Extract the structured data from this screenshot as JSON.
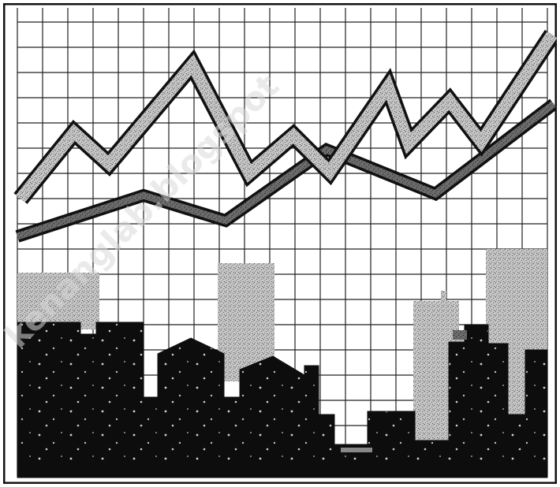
{
  "illustration": {
    "style": "black-and-white clip-art",
    "subject": "rising line chart above a city skyline",
    "colors": {
      "background": "#ffffff",
      "ink": "#111111",
      "grid": "#222222",
      "stipple": "#b8b8b8"
    }
  },
  "watermark": {
    "text": "kenanglab.blogspot",
    "colour": "#d9d9d9"
  }
}
